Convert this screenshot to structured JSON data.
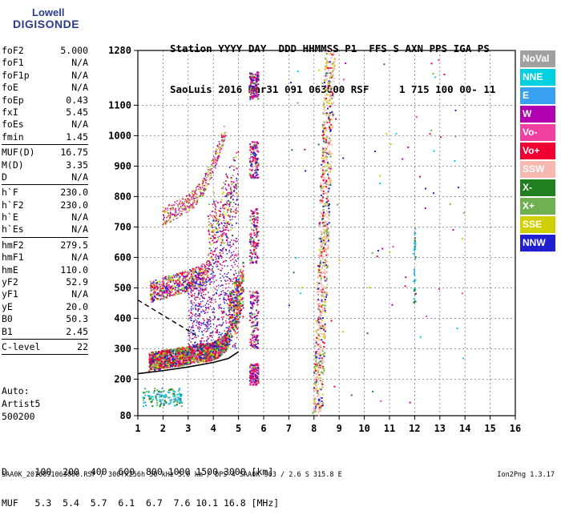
{
  "logo": {
    "line1": "Lowell",
    "line2": "DIGISONDE"
  },
  "header": {
    "line1": "Station YYYY DAY  DDD HHMMSS P1  FFS S AXN PPS IGA PS",
    "line2": "SaoLuis 2016 Mar31 091 063000 RSF     1 715 100 00- 11"
  },
  "params": [
    {
      "name": "foF2",
      "value": "5.000"
    },
    {
      "name": "foF1",
      "value": "N/A"
    },
    {
      "name": "foF1p",
      "value": "N/A"
    },
    {
      "name": "foE",
      "value": "N/A"
    },
    {
      "name": "foEp",
      "value": "0.43"
    },
    {
      "name": "fxI",
      "value": "5.45"
    },
    {
      "name": "foEs",
      "value": "N/A"
    },
    {
      "name": "fmin",
      "value": "1.45",
      "sep": true
    },
    {
      "name": "MUF(D)",
      "value": "16.75"
    },
    {
      "name": "M(D)",
      "value": "3.35"
    },
    {
      "name": "D",
      "value": "N/A",
      "sep": true
    },
    {
      "name": "h`F",
      "value": "230.0"
    },
    {
      "name": "h`F2",
      "value": "230.0"
    },
    {
      "name": "h`E",
      "value": "N/A"
    },
    {
      "name": "h`Es",
      "value": "N/A",
      "sep": true
    },
    {
      "name": "hmF2",
      "value": "279.5"
    },
    {
      "name": "hmF1",
      "value": "N/A"
    },
    {
      "name": "hmE",
      "value": "110.0"
    },
    {
      "name": "yF2",
      "value": "52.9"
    },
    {
      "name": "yF1",
      "value": "N/A"
    },
    {
      "name": "yE",
      "value": "20.0"
    },
    {
      "name": "B0",
      "value": "50.3"
    },
    {
      "name": "B1",
      "value": "2.45",
      "sep": true
    },
    {
      "name": "C-level",
      "value": "22",
      "sep": true
    }
  ],
  "extra": {
    "l1": "Auto:",
    "l2": "Artist5",
    "l3": "500200"
  },
  "dmuf": {
    "d_line": "D     100  200  400  600  800 1000 1500 3000 [km]",
    "muf_line": "MUF   5.3  5.4  5.7  6.1  6.7  7.6 10.1 16.8 [MHz]"
  },
  "footer": {
    "left": "SAA0K_2016091063000.RSF / 300fx256h 50 kHz 5.0 km / DPS-4 SAA0K 903 / 2.6 S 315.8 E",
    "right": "Ion2Png 1.3.17"
  },
  "legend": [
    {
      "label": "NoVal",
      "color": "#a0a0a0"
    },
    {
      "label": "NNE",
      "color": "#00d0e0"
    },
    {
      "label": "E",
      "color": "#3aa0f0"
    },
    {
      "label": "W",
      "color": "#b000b0"
    },
    {
      "label": "Vo-",
      "color": "#f040a0"
    },
    {
      "label": "Vo+",
      "color": "#f00030"
    },
    {
      "label": "SSW",
      "color": "#f8b8b0"
    },
    {
      "label": "X-",
      "color": "#208020"
    },
    {
      "label": "X+",
      "color": "#70b050"
    },
    {
      "label": "SSE",
      "color": "#d0d000"
    },
    {
      "label": "NNW",
      "color": "#2020d0"
    }
  ],
  "chart_data": {
    "type": "scatter",
    "x_ticks": [
      "1",
      "2",
      "3",
      "4",
      "5",
      "6",
      "7",
      "8",
      "9",
      "10",
      "11",
      "12",
      "13",
      "14",
      "15",
      "16"
    ],
    "y_ticks": [
      "80",
      "200",
      "300",
      "400",
      "500",
      "600",
      "700",
      "800",
      "900",
      "1000",
      "1100",
      "1280"
    ],
    "xlim": [
      1,
      16
    ],
    "ylim": [
      80,
      1280
    ],
    "grid": true,
    "traces": [
      {
        "name": "F2 trace",
        "x_range": [
          1.45,
          5.2
        ],
        "height": [
          230,
          380
        ]
      },
      {
        "name": "2F trace",
        "x_range": [
          1.5,
          5.0
        ],
        "height": [
          460,
          750
        ]
      },
      {
        "name": "3F trace",
        "x_range": [
          2.0,
          4.5
        ],
        "height": [
          700,
          1200
        ]
      }
    ],
    "profile_curve": [
      [
        1.0,
        218
      ],
      [
        2.0,
        228
      ],
      [
        3.0,
        240
      ],
      [
        4.0,
        255
      ],
      [
        4.6,
        268
      ],
      [
        5.0,
        290
      ]
    ],
    "dashed_curve": [
      [
        1.0,
        460
      ],
      [
        2.0,
        410
      ],
      [
        3.0,
        360
      ],
      [
        3.3,
        345
      ]
    ]
  }
}
